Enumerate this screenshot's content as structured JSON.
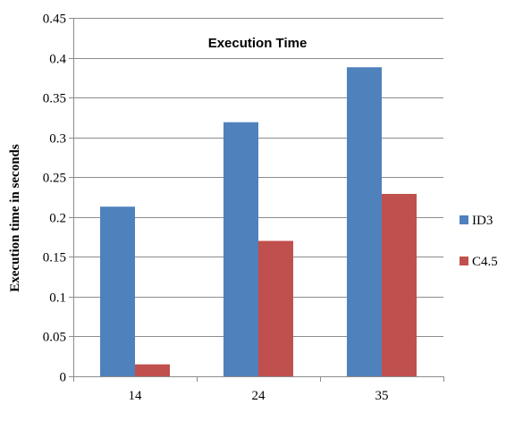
{
  "chart_data": {
    "type": "bar",
    "title": "Execution Time",
    "ylabel": "Execution time in seconds",
    "xlabel": "",
    "categories": [
      "14",
      "24",
      "35"
    ],
    "series": [
      {
        "name": "ID3",
        "color": "#4f81bd",
        "values": [
          0.213,
          0.319,
          0.388
        ]
      },
      {
        "name": "C4.5",
        "color": "#c0504d",
        "values": [
          0.015,
          0.17,
          0.229
        ]
      }
    ],
    "ylim": [
      0,
      0.45
    ],
    "yticks": [
      "0",
      "0.05",
      "0.1",
      "0.15",
      "0.2",
      "0.25",
      "0.3",
      "0.35",
      "0.4",
      "0.45"
    ],
    "grid": true,
    "legend_position": "right"
  }
}
